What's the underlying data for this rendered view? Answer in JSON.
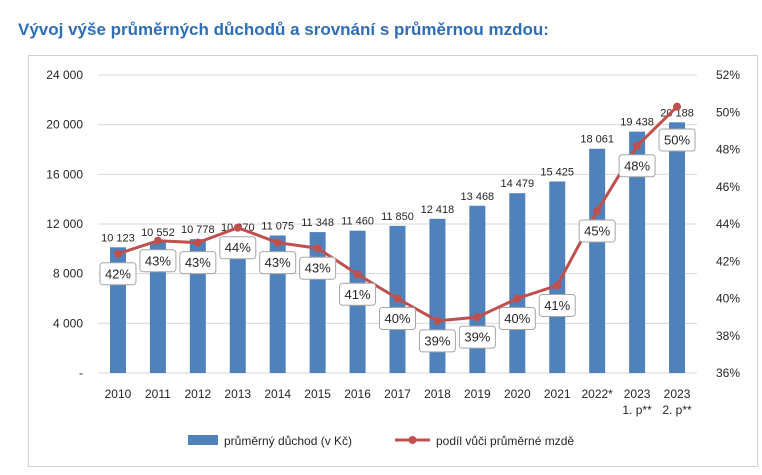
{
  "title": "Vývoj výše průměrných důchodů a srovnání s průměrnou mzdou:",
  "chart_data": {
    "type": "bar",
    "categories": [
      [
        "2010"
      ],
      [
        "2011"
      ],
      [
        "2012"
      ],
      [
        "2013"
      ],
      [
        "2014"
      ],
      [
        "2015"
      ],
      [
        "2016"
      ],
      [
        "2017"
      ],
      [
        "2018"
      ],
      [
        "2019"
      ],
      [
        "2020"
      ],
      [
        "2021"
      ],
      [
        "2022*"
      ],
      [
        "2023",
        "1. p**"
      ],
      [
        "2023",
        "2. p**"
      ]
    ],
    "series": [
      {
        "name": "průměrný důchod (v Kč)",
        "type": "bar",
        "axis": "left",
        "color": "#4f81bd",
        "values": [
          10123,
          10552,
          10778,
          10970,
          11075,
          11348,
          11460,
          11850,
          12418,
          13468,
          14479,
          15425,
          18061,
          19438,
          20188
        ],
        "labels": [
          "10 123",
          "10 552",
          "10 778",
          "10 970",
          "11 075",
          "11 348",
          "11 460",
          "11 850",
          "12 418",
          "13 468",
          "14 479",
          "15 425",
          "18 061",
          "19 438",
          "20 188"
        ]
      },
      {
        "name": "podíl vůči průměrné mzdě",
        "type": "line",
        "axis": "right",
        "color": "#c0504d",
        "values": [
          42.4,
          43.1,
          43.0,
          43.8,
          43.0,
          42.7,
          41.3,
          40.0,
          38.8,
          39.0,
          40.0,
          40.7,
          44.7,
          48.2,
          50.3
        ],
        "labels": [
          "42%",
          "43%",
          "43%",
          "44%",
          "43%",
          "43%",
          "41%",
          "40%",
          "39%",
          "39%",
          "40%",
          "41%",
          "45%",
          "48%",
          "50%"
        ]
      }
    ],
    "y_left": {
      "min": 0,
      "max": 24000,
      "ticks": [
        0,
        4000,
        8000,
        12000,
        16000,
        20000,
        24000
      ],
      "tick_labels": [
        "-",
        "4 000",
        "8 000",
        "12 000",
        "16 000",
        "20 000",
        "24 000"
      ]
    },
    "y_right": {
      "min": 36,
      "max": 52,
      "ticks": [
        36,
        38,
        40,
        42,
        44,
        46,
        48,
        50,
        52
      ],
      "tick_labels": [
        "36%",
        "38%",
        "40%",
        "42%",
        "44%",
        "46%",
        "48%",
        "50%",
        "52%"
      ]
    },
    "grid": true,
    "legend_position": "bottom"
  }
}
